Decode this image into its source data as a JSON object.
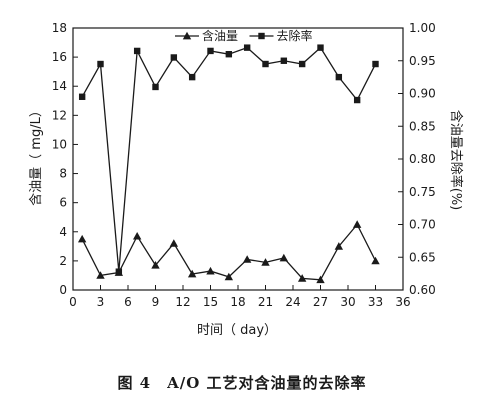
{
  "chart_data": {
    "type": "line",
    "caption": "图 4　A/O 工艺对含油量的去除率",
    "xlabel": "时间（ day）",
    "ylabel_left": "含油量（ mg/L）",
    "ylabel_right": "含油量去除率(%)",
    "xlim": [
      0,
      36
    ],
    "ylim_left": [
      0,
      18
    ],
    "ylim_right": [
      0.6,
      1.0
    ],
    "x_ticks": [
      "0",
      "3",
      "6",
      "9",
      "12",
      "15",
      "18",
      "21",
      "24",
      "27",
      "30",
      "33",
      "36"
    ],
    "y_left_ticks": [
      "0",
      "2",
      "4",
      "6",
      "8",
      "10",
      "12",
      "14",
      "16",
      "18"
    ],
    "y_right_ticks": [
      "0.60",
      "0.65",
      "0.70",
      "0.75",
      "0.80",
      "0.85",
      "0.90",
      "0.95",
      "1.00"
    ],
    "legend_placement": "top-center",
    "grid": false,
    "series": [
      {
        "name": "含油量",
        "axis": "left",
        "marker": "triangle",
        "x": [
          1,
          3,
          5,
          7,
          9,
          11,
          13,
          15,
          17,
          19,
          21,
          23,
          25,
          27,
          29,
          31,
          33
        ],
        "y": [
          3.5,
          1.0,
          1.2,
          3.7,
          1.7,
          3.2,
          1.1,
          1.3,
          0.9,
          2.1,
          1.9,
          2.2,
          0.8,
          0.7,
          3.0,
          4.5,
          2.0
        ]
      },
      {
        "name": "去除率",
        "axis": "right",
        "marker": "square",
        "x": [
          1,
          3,
          5,
          7,
          9,
          11,
          13,
          15,
          17,
          19,
          21,
          23,
          25,
          27,
          29,
          31,
          33
        ],
        "y": [
          0.895,
          0.945,
          0.628,
          0.965,
          0.91,
          0.955,
          0.925,
          0.965,
          0.96,
          0.97,
          0.945,
          0.95,
          0.945,
          0.97,
          0.925,
          0.89,
          0.945
        ]
      }
    ]
  }
}
